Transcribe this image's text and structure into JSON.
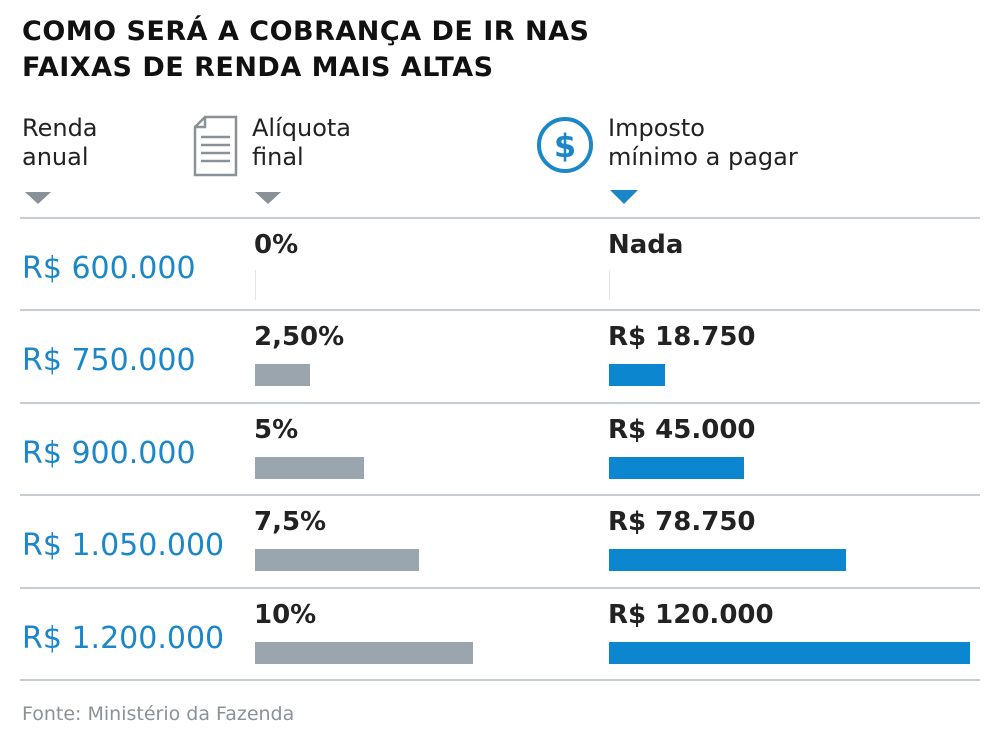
{
  "title": [
    "COMO SERÁ A COBRANÇA DE IR NAS",
    "FAIXAS DE RENDA MAIS ALTAS"
  ],
  "headers": [
    [
      "Renda",
      "anual"
    ],
    [
      "Alíquota",
      "final"
    ],
    [
      "Imposto",
      "mínimo a pagar"
    ]
  ],
  "rows": [
    {
      "renda": "R$ 600.000",
      "aliquota": {
        "value": 0,
        "label": "0%"
      },
      "imposto": {
        "value": 0,
        "label": "Nada"
      }
    },
    {
      "renda": "R$ 750.000",
      "aliquota": {
        "value": 2.5,
        "label": "2,50%"
      },
      "imposto": {
        "value": 18750,
        "label": "R$ 18.750"
      }
    },
    {
      "renda": "R$ 900.000",
      "aliquota": {
        "value": 5,
        "label": "5%"
      },
      "imposto": {
        "value": 45000,
        "label": "R$ 45.000"
      }
    },
    {
      "renda": "R$ 1.050.000",
      "aliquota": {
        "value": 7.5,
        "label": "7,5%"
      },
      "imposto": {
        "value": 78750,
        "label": "R$ 78.750"
      }
    },
    {
      "renda": "R$ 1.200.000",
      "aliquota": {
        "value": 10,
        "label": "10%"
      },
      "imposto": {
        "value": 120000,
        "label": "R$ 120.000"
      }
    }
  ],
  "source": "Fonte: Ministério da Fazenda"
}
